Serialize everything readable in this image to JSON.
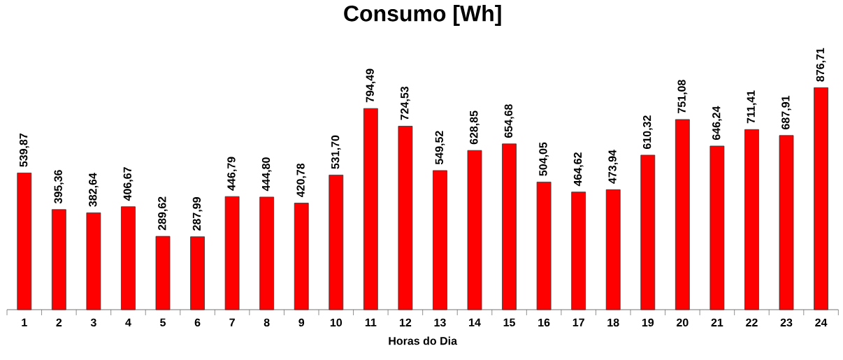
{
  "chart_data": {
    "type": "bar",
    "title": "Consumo [Wh]",
    "xlabel": "Horas do Dia",
    "categories": [
      "1",
      "2",
      "3",
      "4",
      "5",
      "6",
      "7",
      "8",
      "9",
      "10",
      "11",
      "12",
      "13",
      "14",
      "15",
      "16",
      "17",
      "18",
      "19",
      "20",
      "21",
      "22",
      "23",
      "24"
    ],
    "values": [
      539.87,
      395.36,
      382.64,
      406.67,
      289.62,
      287.99,
      446.79,
      444.8,
      420.78,
      531.7,
      794.49,
      724.53,
      549.52,
      628.85,
      654.68,
      504.05,
      464.62,
      473.94,
      610.32,
      751.08,
      646.24,
      711.41,
      687.91,
      876.71
    ],
    "value_labels": [
      "539,87",
      "395,36",
      "382,64",
      "406,67",
      "289,62",
      "287,99",
      "446,79",
      "444,80",
      "420,78",
      "531,70",
      "794,49",
      "724,53",
      "549,52",
      "628,85",
      "654,68",
      "504,05",
      "464,62",
      "473,94",
      "610,32",
      "751,08",
      "646,24",
      "711,41",
      "687,91",
      "876,71"
    ],
    "color": "#ff0000"
  }
}
